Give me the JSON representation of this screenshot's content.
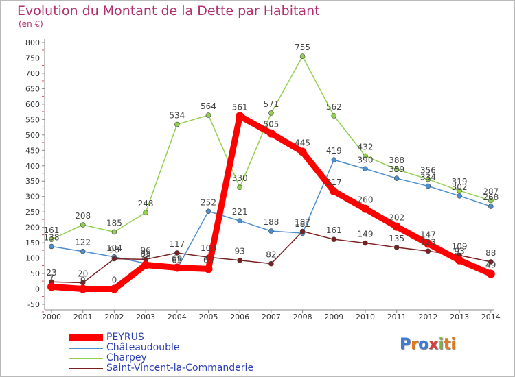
{
  "title": "Evolution du Montant de la Dette par Habitant",
  "unit_label": "(en €)",
  "brand": "Proxiti",
  "chart_data": {
    "type": "line",
    "categories": [
      "2000",
      "2001",
      "2002",
      "2003",
      "2004",
      "2005",
      "2006",
      "2007",
      "2008",
      "2009",
      "2010",
      "2011",
      "2012",
      "2013",
      "2014"
    ],
    "ylim": [
      -50,
      800
    ],
    "yticks": [
      -50,
      0,
      50,
      100,
      150,
      200,
      250,
      300,
      350,
      400,
      450,
      500,
      550,
      600,
      650,
      700,
      750,
      800
    ],
    "grid": false,
    "legend_placement": "bottom-left",
    "series": [
      {
        "name": "PEYRUS",
        "color": "#ff0000",
        "values": [
          7,
          0,
          0,
          78,
          69,
          65,
          561,
          505,
          445,
          317,
          260,
          202,
          147,
          93,
          49
        ]
      },
      {
        "name": "Châteaudouble",
        "color": "#4d8fce",
        "values": [
          138,
          122,
          104,
          83,
          65,
          252,
          221,
          188,
          181,
          419,
          390,
          359,
          334,
          302,
          268
        ]
      },
      {
        "name": "Charpey",
        "color": "#92d050",
        "values": [
          161,
          208,
          185,
          248,
          534,
          564,
          330,
          571,
          755,
          562,
          432,
          388,
          356,
          319,
          287
        ]
      },
      {
        "name": "Saint-Vincent-la-Commanderie",
        "color": "#7a2020",
        "values": [
          23,
          20,
          98,
          96,
          117,
          103,
          93,
          82,
          187,
          161,
          149,
          135,
          123,
          109,
          88
        ]
      }
    ]
  }
}
